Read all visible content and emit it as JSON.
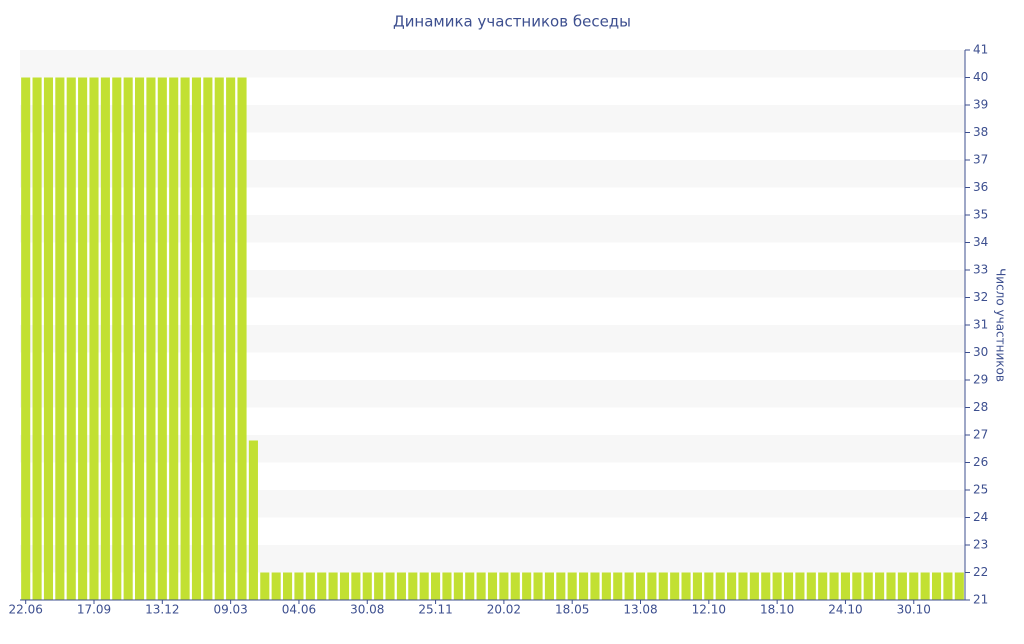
{
  "chart_data": {
    "type": "bar",
    "title": "Динамика участников беседы",
    "y_label": "Число участников",
    "categories": [
      "22.06",
      null,
      null,
      null,
      null,
      null,
      "17.09",
      null,
      null,
      null,
      null,
      null,
      "13.12",
      null,
      null,
      null,
      null,
      null,
      "09.03",
      null,
      null,
      null,
      null,
      null,
      "04.06",
      null,
      null,
      null,
      null,
      null,
      "30.08",
      null,
      null,
      null,
      null,
      null,
      "25.11",
      null,
      null,
      null,
      null,
      null,
      "20.02",
      null,
      null,
      null,
      null,
      null,
      "18.05",
      null,
      null,
      null,
      null,
      null,
      "13.08",
      null,
      null,
      null,
      null,
      null,
      "12.10",
      null,
      null,
      null,
      null,
      null,
      "18.10",
      null,
      null,
      null,
      null,
      null,
      "24.10",
      null,
      null,
      null,
      null,
      null,
      "30.10",
      null,
      null,
      null,
      null
    ],
    "values": [
      40,
      40,
      40,
      40,
      40,
      40,
      40,
      40,
      40,
      40,
      40,
      40,
      40,
      40,
      40,
      40,
      40,
      40,
      40,
      40,
      26.8,
      22,
      22,
      22,
      22,
      22,
      22,
      22,
      22,
      22,
      22,
      22,
      22,
      22,
      22,
      22,
      22,
      22,
      22,
      22,
      22,
      22,
      22,
      22,
      22,
      22,
      22,
      22,
      22,
      22,
      22,
      22,
      22,
      22,
      22,
      22,
      22,
      22,
      22,
      22,
      22,
      22,
      22,
      22,
      22,
      22,
      22,
      22,
      22,
      22,
      22,
      22,
      22,
      22,
      22,
      22,
      22,
      22,
      22,
      22,
      22,
      22,
      22
    ],
    "color": "#c2e032",
    "ylim": [
      21,
      41
    ],
    "yticks": [
      21,
      22,
      23,
      24,
      25,
      26,
      27,
      28,
      29,
      30,
      31,
      32,
      33,
      34,
      35,
      36,
      37,
      38,
      39,
      40,
      41
    ],
    "y_axis_side": "right",
    "grid": true
  }
}
